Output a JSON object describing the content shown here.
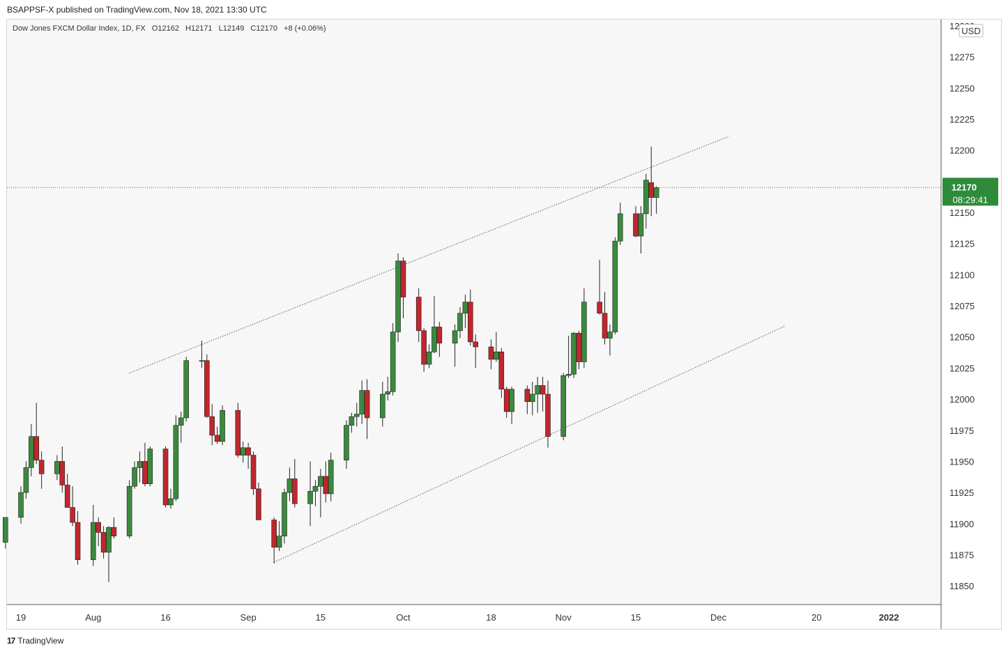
{
  "header": {
    "published": "BSAPPSF-X published on TradingView.com, Nov 18, 2021 13:30 UTC"
  },
  "legend": {
    "symbol": "Dow Jones FXCM Dollar Index, 1D, FX",
    "open": "O12162",
    "high": "H12171",
    "low": "L12149",
    "close": "C12170",
    "change": "+8 (+0.06%)"
  },
  "price_tag": {
    "price": "12170",
    "countdown": "08:29:41"
  },
  "currency": "USD",
  "footer": {
    "logo": "17",
    "brand": "TradingView"
  },
  "colors": {
    "up": "#3b8a3e",
    "down": "#c0272d",
    "wick": "#222222",
    "last_price_line": "#2e7d32"
  },
  "chart_data": {
    "type": "candlestick",
    "y_axis": {
      "min": 11835,
      "max": 12305,
      "ticks": [
        11850,
        11875,
        11900,
        11925,
        11950,
        11975,
        12000,
        12025,
        12050,
        12075,
        12100,
        12125,
        12150,
        12175,
        12200,
        12225,
        12250,
        12275,
        12300
      ]
    },
    "x_axis": {
      "labels": [
        {
          "text": "19",
          "date": "2021-07-19"
        },
        {
          "text": "Aug",
          "date": "2021-08-02"
        },
        {
          "text": "16",
          "date": "2021-08-16"
        },
        {
          "text": "Sep",
          "date": "2021-09-01"
        },
        {
          "text": "15",
          "date": "2021-09-15"
        },
        {
          "text": "Oct",
          "date": "2021-10-01"
        },
        {
          "text": "18",
          "date": "2021-10-18"
        },
        {
          "text": "Nov",
          "date": "2021-11-01"
        },
        {
          "text": "15",
          "date": "2021-11-15"
        },
        {
          "text": "Dec",
          "date": "2021-12-01"
        },
        {
          "text": "20",
          "date": "2021-12-20"
        },
        {
          "text": "2022",
          "date": "2022-01-03"
        }
      ]
    },
    "last_price": 12170,
    "candles": [
      {
        "date": "2021-07-16",
        "o": 11885,
        "h": 11905,
        "l": 11880,
        "c": 11905
      },
      {
        "date": "2021-07-19",
        "o": 11905,
        "h": 11930,
        "l": 11900,
        "c": 11925
      },
      {
        "date": "2021-07-20",
        "o": 11925,
        "h": 11950,
        "l": 11920,
        "c": 11945
      },
      {
        "date": "2021-07-21",
        "o": 11945,
        "h": 11980,
        "l": 11938,
        "c": 11970
      },
      {
        "date": "2021-07-22",
        "o": 11970,
        "h": 11997,
        "l": 11948,
        "c": 11951
      },
      {
        "date": "2021-07-23",
        "o": 11951,
        "h": 11958,
        "l": 11928,
        "c": 11940
      },
      {
        "date": "2021-07-26",
        "o": 11940,
        "h": 11955,
        "l": 11935,
        "c": 11950
      },
      {
        "date": "2021-07-27",
        "o": 11950,
        "h": 11962,
        "l": 11925,
        "c": 11931
      },
      {
        "date": "2021-07-28",
        "o": 11931,
        "h": 11940,
        "l": 11913,
        "c": 11913
      },
      {
        "date": "2021-07-29",
        "o": 11913,
        "h": 11930,
        "l": 11898,
        "c": 11901
      },
      {
        "date": "2021-07-30",
        "o": 11901,
        "h": 11910,
        "l": 11867,
        "c": 11871
      },
      {
        "date": "2021-08-02",
        "o": 11871,
        "h": 11915,
        "l": 11866,
        "c": 11901
      },
      {
        "date": "2021-08-03",
        "o": 11901,
        "h": 11905,
        "l": 11882,
        "c": 11893
      },
      {
        "date": "2021-08-04",
        "o": 11893,
        "h": 11898,
        "l": 11872,
        "c": 11877
      },
      {
        "date": "2021-08-05",
        "o": 11877,
        "h": 11898,
        "l": 11853,
        "c": 11897
      },
      {
        "date": "2021-08-06",
        "o": 11897,
        "h": 11905,
        "l": 11888,
        "c": 11890
      },
      {
        "date": "2021-08-09",
        "o": 11890,
        "h": 11935,
        "l": 11888,
        "c": 11930
      },
      {
        "date": "2021-08-10",
        "o": 11930,
        "h": 11950,
        "l": 11928,
        "c": 11945
      },
      {
        "date": "2021-08-11",
        "o": 11945,
        "h": 11958,
        "l": 11933,
        "c": 11950
      },
      {
        "date": "2021-08-12",
        "o": 11950,
        "h": 11965,
        "l": 11930,
        "c": 11932
      },
      {
        "date": "2021-08-13",
        "o": 11932,
        "h": 11962,
        "l": 11930,
        "c": 11960
      },
      {
        "date": "2021-08-16",
        "o": 11960,
        "h": 11962,
        "l": 11913,
        "c": 11915
      },
      {
        "date": "2021-08-17",
        "o": 11915,
        "h": 11928,
        "l": 11912,
        "c": 11920
      },
      {
        "date": "2021-08-18",
        "o": 11920,
        "h": 11987,
        "l": 11918,
        "c": 11979
      },
      {
        "date": "2021-08-19",
        "o": 11979,
        "h": 11990,
        "l": 11965,
        "c": 11985
      },
      {
        "date": "2021-08-20",
        "o": 11985,
        "h": 12034,
        "l": 11982,
        "c": 12031
      },
      {
        "date": "2021-08-23",
        "o": 12031,
        "h": 12047,
        "l": 12025,
        "c": 12031
      },
      {
        "date": "2021-08-24",
        "o": 12031,
        "h": 12036,
        "l": 11985,
        "c": 11986
      },
      {
        "date": "2021-08-25",
        "o": 11986,
        "h": 11996,
        "l": 11963,
        "c": 11971
      },
      {
        "date": "2021-08-26",
        "o": 11971,
        "h": 11978,
        "l": 11964,
        "c": 11966
      },
      {
        "date": "2021-08-27",
        "o": 11966,
        "h": 11995,
        "l": 11963,
        "c": 11991
      },
      {
        "date": "2021-08-30",
        "o": 11991,
        "h": 11997,
        "l": 11953,
        "c": 11955
      },
      {
        "date": "2021-08-31",
        "o": 11955,
        "h": 11966,
        "l": 11949,
        "c": 11961
      },
      {
        "date": "2021-09-01",
        "o": 11961,
        "h": 11965,
        "l": 11944,
        "c": 11955
      },
      {
        "date": "2021-09-02",
        "o": 11955,
        "h": 11958,
        "l": 11923,
        "c": 11928
      },
      {
        "date": "2021-09-03",
        "o": 11928,
        "h": 11933,
        "l": 11903,
        "c": 11903
      },
      {
        "date": "2021-09-06",
        "o": 11903,
        "h": 11905,
        "l": 11868,
        "c": 11881
      },
      {
        "date": "2021-09-07",
        "o": 11881,
        "h": 11902,
        "l": 11878,
        "c": 11890
      },
      {
        "date": "2021-09-08",
        "o": 11890,
        "h": 11928,
        "l": 11884,
        "c": 11925
      },
      {
        "date": "2021-09-09",
        "o": 11925,
        "h": 11945,
        "l": 11918,
        "c": 11936
      },
      {
        "date": "2021-09-10",
        "o": 11936,
        "h": 11952,
        "l": 11913,
        "c": 11916
      },
      {
        "date": "2021-09-13",
        "o": 11916,
        "h": 11950,
        "l": 11898,
        "c": 11926
      },
      {
        "date": "2021-09-14",
        "o": 11926,
        "h": 11935,
        "l": 11914,
        "c": 11930
      },
      {
        "date": "2021-09-15",
        "o": 11930,
        "h": 11944,
        "l": 11905,
        "c": 11938
      },
      {
        "date": "2021-09-16",
        "o": 11938,
        "h": 11950,
        "l": 11917,
        "c": 11924
      },
      {
        "date": "2021-09-17",
        "o": 11924,
        "h": 11957,
        "l": 11918,
        "c": 11951
      },
      {
        "date": "2021-09-20",
        "o": 11951,
        "h": 11983,
        "l": 11944,
        "c": 11979
      },
      {
        "date": "2021-09-21",
        "o": 11979,
        "h": 11989,
        "l": 11973,
        "c": 11986
      },
      {
        "date": "2021-09-22",
        "o": 11986,
        "h": 11997,
        "l": 11978,
        "c": 11988
      },
      {
        "date": "2021-09-23",
        "o": 11988,
        "h": 12015,
        "l": 11980,
        "c": 12007
      },
      {
        "date": "2021-09-24",
        "o": 12007,
        "h": 12016,
        "l": 11968,
        "c": 11985
      },
      {
        "date": "2021-09-27",
        "o": 11985,
        "h": 12014,
        "l": 11978,
        "c": 12004
      },
      {
        "date": "2021-09-28",
        "o": 12004,
        "h": 12018,
        "l": 11999,
        "c": 12006
      },
      {
        "date": "2021-09-29",
        "o": 12006,
        "h": 12061,
        "l": 12003,
        "c": 12054
      },
      {
        "date": "2021-09-30",
        "o": 12054,
        "h": 12117,
        "l": 12046,
        "c": 12111
      },
      {
        "date": "2021-10-01",
        "o": 12111,
        "h": 12114,
        "l": 12065,
        "c": 12082
      },
      {
        "date": "2021-10-04",
        "o": 12082,
        "h": 12089,
        "l": 12046,
        "c": 12055
      },
      {
        "date": "2021-10-05",
        "o": 12055,
        "h": 12057,
        "l": 12022,
        "c": 12028
      },
      {
        "date": "2021-10-06",
        "o": 12028,
        "h": 12044,
        "l": 12025,
        "c": 12038
      },
      {
        "date": "2021-10-07",
        "o": 12038,
        "h": 12083,
        "l": 12037,
        "c": 12058
      },
      {
        "date": "2021-10-08",
        "o": 12058,
        "h": 12062,
        "l": 12034,
        "c": 12045
      },
      {
        "date": "2021-10-11",
        "o": 12045,
        "h": 12060,
        "l": 12026,
        "c": 12055
      },
      {
        "date": "2021-10-12",
        "o": 12055,
        "h": 12074,
        "l": 12049,
        "c": 12069
      },
      {
        "date": "2021-10-13",
        "o": 12069,
        "h": 12084,
        "l": 12057,
        "c": 12078
      },
      {
        "date": "2021-10-14",
        "o": 12078,
        "h": 12088,
        "l": 12043,
        "c": 12046
      },
      {
        "date": "2021-10-15",
        "o": 12046,
        "h": 12052,
        "l": 12025,
        "c": 12042
      },
      {
        "date": "2021-10-18",
        "o": 12042,
        "h": 12048,
        "l": 12024,
        "c": 12032
      },
      {
        "date": "2021-10-19",
        "o": 12032,
        "h": 12054,
        "l": 12030,
        "c": 12038
      },
      {
        "date": "2021-10-20",
        "o": 12038,
        "h": 12041,
        "l": 12001,
        "c": 12008
      },
      {
        "date": "2021-10-21",
        "o": 12008,
        "h": 12010,
        "l": 11985,
        "c": 11990
      },
      {
        "date": "2021-10-22",
        "o": 11990,
        "h": 12010,
        "l": 11980,
        "c": 12008
      },
      {
        "date": "2021-10-25",
        "o": 12008,
        "h": 12011,
        "l": 11988,
        "c": 11998
      },
      {
        "date": "2021-10-26",
        "o": 11998,
        "h": 12014,
        "l": 11987,
        "c": 12004
      },
      {
        "date": "2021-10-27",
        "o": 12004,
        "h": 12018,
        "l": 11989,
        "c": 12011
      },
      {
        "date": "2021-10-28",
        "o": 12011,
        "h": 12018,
        "l": 11990,
        "c": 12004
      },
      {
        "date": "2021-10-29",
        "o": 12004,
        "h": 12015,
        "l": 11961,
        "c": 11970
      },
      {
        "date": "2021-11-01",
        "o": 11970,
        "h": 12021,
        "l": 11967,
        "c": 12019
      },
      {
        "date": "2021-11-02",
        "o": 12019,
        "h": 12051,
        "l": 12017,
        "c": 12020
      },
      {
        "date": "2021-11-03",
        "o": 12020,
        "h": 12054,
        "l": 12017,
        "c": 12053
      },
      {
        "date": "2021-11-04",
        "o": 12053,
        "h": 12055,
        "l": 12024,
        "c": 12030
      },
      {
        "date": "2021-11-05",
        "o": 12030,
        "h": 12089,
        "l": 12025,
        "c": 12078
      },
      {
        "date": "2021-11-08",
        "o": 12078,
        "h": 12112,
        "l": 12068,
        "c": 12069
      },
      {
        "date": "2021-11-09",
        "o": 12069,
        "h": 12086,
        "l": 12044,
        "c": 12049
      },
      {
        "date": "2021-11-10",
        "o": 12049,
        "h": 12060,
        "l": 12035,
        "c": 12054
      },
      {
        "date": "2021-11-11",
        "o": 12054,
        "h": 12130,
        "l": 12052,
        "c": 12127
      },
      {
        "date": "2021-11-12",
        "o": 12127,
        "h": 12158,
        "l": 12124,
        "c": 12149
      },
      {
        "date": "2021-11-15",
        "o": 12149,
        "h": 12155,
        "l": 12130,
        "c": 12131
      },
      {
        "date": "2021-11-16",
        "o": 12131,
        "h": 12155,
        "l": 12117,
        "c": 12149
      },
      {
        "date": "2021-11-17",
        "o": 12149,
        "h": 12181,
        "l": 12137,
        "c": 12176
      },
      {
        "date": "2021-11-18",
        "o": 12174,
        "h": 12203,
        "l": 12147,
        "c": 12162
      },
      {
        "date": "2021-11-19",
        "o": 12162,
        "h": 12171,
        "l": 12149,
        "c": 12170
      }
    ],
    "trendlines": [
      {
        "from": {
          "date": "2021-08-09",
          "price": 12021
        },
        "to": {
          "date": "2021-12-03",
          "price": 12211
        }
      },
      {
        "from": {
          "date": "2021-09-06",
          "price": 11869
        },
        "to": {
          "date": "2021-12-14",
          "price": 12059
        }
      }
    ]
  }
}
